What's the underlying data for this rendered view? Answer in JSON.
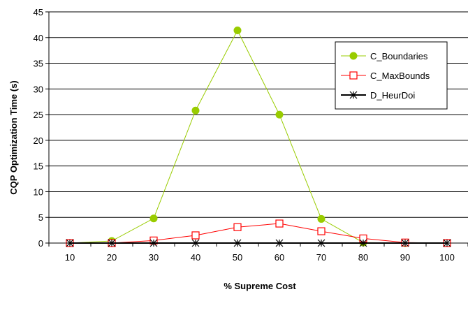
{
  "chart_data": {
    "type": "line",
    "title": "",
    "xlabel": "% Supreme Cost",
    "ylabel": "CQP Optimization Time (s)",
    "x": [
      10,
      20,
      30,
      40,
      50,
      60,
      70,
      80,
      90,
      100
    ],
    "ylim": [
      0,
      45
    ],
    "yticks": [
      0,
      5,
      10,
      15,
      20,
      25,
      30,
      35,
      40,
      45
    ],
    "grid": "horizontal",
    "legend_position": "right",
    "series": [
      {
        "name": "C_Boundaries",
        "color": "#99CC00",
        "marker": "circle",
        "values": [
          0.0,
          0.4,
          4.8,
          25.8,
          41.4,
          25.0,
          4.7,
          0.1,
          0.0,
          0.0
        ]
      },
      {
        "name": "C_MaxBounds",
        "color": "#FF0000",
        "marker": "square",
        "values": [
          0.0,
          0.0,
          0.5,
          1.5,
          3.1,
          3.8,
          2.3,
          0.9,
          0.1,
          0.0
        ]
      },
      {
        "name": "D_HeurDoi",
        "color": "#000000",
        "marker": "asterisk",
        "values": [
          0.0,
          0.0,
          0.0,
          0.0,
          0.0,
          0.0,
          0.0,
          0.0,
          0.0,
          0.0
        ]
      }
    ]
  }
}
